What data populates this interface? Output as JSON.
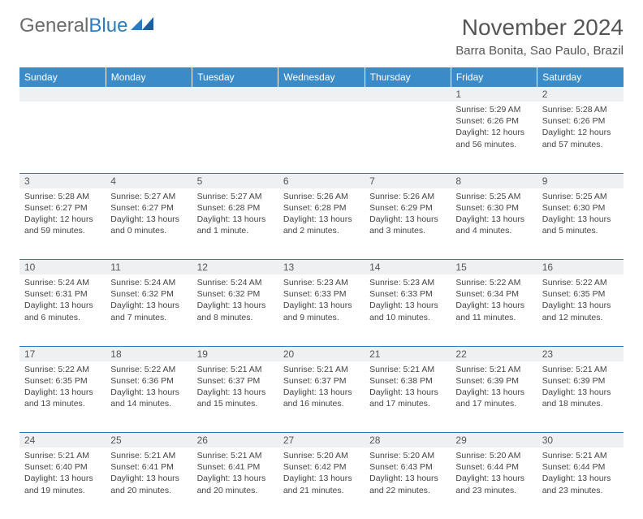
{
  "brand": {
    "part1": "General",
    "part2": "Blue"
  },
  "title": "November 2024",
  "location": "Barra Bonita, Sao Paulo, Brazil",
  "colors": {
    "header_bg": "#3b8bc9",
    "header_text": "#ffffff",
    "border": "#2f7bbf",
    "daynum_bg": "#eef0f2",
    "body_text": "#444444",
    "title_text": "#555555"
  },
  "weekdays": [
    "Sunday",
    "Monday",
    "Tuesday",
    "Wednesday",
    "Thursday",
    "Friday",
    "Saturday"
  ],
  "weeks": [
    [
      {
        "n": "",
        "t": ""
      },
      {
        "n": "",
        "t": ""
      },
      {
        "n": "",
        "t": ""
      },
      {
        "n": "",
        "t": ""
      },
      {
        "n": "",
        "t": ""
      },
      {
        "n": "1",
        "t": "Sunrise: 5:29 AM\nSunset: 6:26 PM\nDaylight: 12 hours and 56 minutes."
      },
      {
        "n": "2",
        "t": "Sunrise: 5:28 AM\nSunset: 6:26 PM\nDaylight: 12 hours and 57 minutes."
      }
    ],
    [
      {
        "n": "3",
        "t": "Sunrise: 5:28 AM\nSunset: 6:27 PM\nDaylight: 12 hours and 59 minutes."
      },
      {
        "n": "4",
        "t": "Sunrise: 5:27 AM\nSunset: 6:27 PM\nDaylight: 13 hours and 0 minutes."
      },
      {
        "n": "5",
        "t": "Sunrise: 5:27 AM\nSunset: 6:28 PM\nDaylight: 13 hours and 1 minute."
      },
      {
        "n": "6",
        "t": "Sunrise: 5:26 AM\nSunset: 6:28 PM\nDaylight: 13 hours and 2 minutes."
      },
      {
        "n": "7",
        "t": "Sunrise: 5:26 AM\nSunset: 6:29 PM\nDaylight: 13 hours and 3 minutes."
      },
      {
        "n": "8",
        "t": "Sunrise: 5:25 AM\nSunset: 6:30 PM\nDaylight: 13 hours and 4 minutes."
      },
      {
        "n": "9",
        "t": "Sunrise: 5:25 AM\nSunset: 6:30 PM\nDaylight: 13 hours and 5 minutes."
      }
    ],
    [
      {
        "n": "10",
        "t": "Sunrise: 5:24 AM\nSunset: 6:31 PM\nDaylight: 13 hours and 6 minutes."
      },
      {
        "n": "11",
        "t": "Sunrise: 5:24 AM\nSunset: 6:32 PM\nDaylight: 13 hours and 7 minutes."
      },
      {
        "n": "12",
        "t": "Sunrise: 5:24 AM\nSunset: 6:32 PM\nDaylight: 13 hours and 8 minutes."
      },
      {
        "n": "13",
        "t": "Sunrise: 5:23 AM\nSunset: 6:33 PM\nDaylight: 13 hours and 9 minutes."
      },
      {
        "n": "14",
        "t": "Sunrise: 5:23 AM\nSunset: 6:33 PM\nDaylight: 13 hours and 10 minutes."
      },
      {
        "n": "15",
        "t": "Sunrise: 5:22 AM\nSunset: 6:34 PM\nDaylight: 13 hours and 11 minutes."
      },
      {
        "n": "16",
        "t": "Sunrise: 5:22 AM\nSunset: 6:35 PM\nDaylight: 13 hours and 12 minutes."
      }
    ],
    [
      {
        "n": "17",
        "t": "Sunrise: 5:22 AM\nSunset: 6:35 PM\nDaylight: 13 hours and 13 minutes."
      },
      {
        "n": "18",
        "t": "Sunrise: 5:22 AM\nSunset: 6:36 PM\nDaylight: 13 hours and 14 minutes."
      },
      {
        "n": "19",
        "t": "Sunrise: 5:21 AM\nSunset: 6:37 PM\nDaylight: 13 hours and 15 minutes."
      },
      {
        "n": "20",
        "t": "Sunrise: 5:21 AM\nSunset: 6:37 PM\nDaylight: 13 hours and 16 minutes."
      },
      {
        "n": "21",
        "t": "Sunrise: 5:21 AM\nSunset: 6:38 PM\nDaylight: 13 hours and 17 minutes."
      },
      {
        "n": "22",
        "t": "Sunrise: 5:21 AM\nSunset: 6:39 PM\nDaylight: 13 hours and 17 minutes."
      },
      {
        "n": "23",
        "t": "Sunrise: 5:21 AM\nSunset: 6:39 PM\nDaylight: 13 hours and 18 minutes."
      }
    ],
    [
      {
        "n": "24",
        "t": "Sunrise: 5:21 AM\nSunset: 6:40 PM\nDaylight: 13 hours and 19 minutes."
      },
      {
        "n": "25",
        "t": "Sunrise: 5:21 AM\nSunset: 6:41 PM\nDaylight: 13 hours and 20 minutes."
      },
      {
        "n": "26",
        "t": "Sunrise: 5:21 AM\nSunset: 6:41 PM\nDaylight: 13 hours and 20 minutes."
      },
      {
        "n": "27",
        "t": "Sunrise: 5:20 AM\nSunset: 6:42 PM\nDaylight: 13 hours and 21 minutes."
      },
      {
        "n": "28",
        "t": "Sunrise: 5:20 AM\nSunset: 6:43 PM\nDaylight: 13 hours and 22 minutes."
      },
      {
        "n": "29",
        "t": "Sunrise: 5:20 AM\nSunset: 6:44 PM\nDaylight: 13 hours and 23 minutes."
      },
      {
        "n": "30",
        "t": "Sunrise: 5:21 AM\nSunset: 6:44 PM\nDaylight: 13 hours and 23 minutes."
      }
    ]
  ]
}
